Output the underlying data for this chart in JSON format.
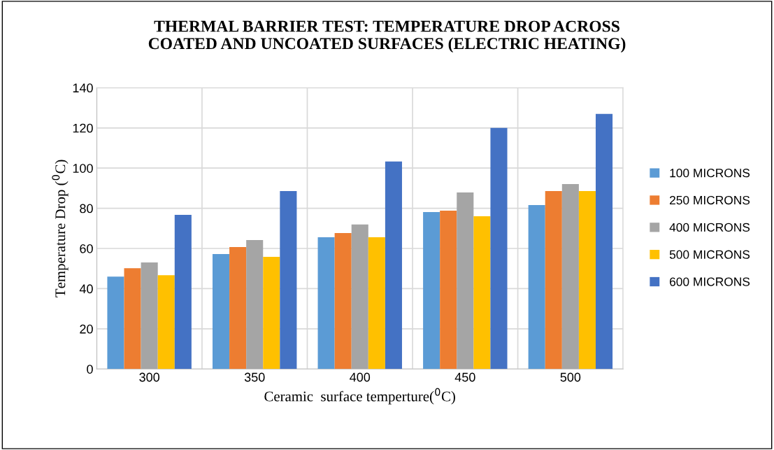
{
  "chart_data": {
    "type": "bar",
    "title": "THERMAL BARRIER TEST: TEMPERATURE DROP ACROSS\nCOATED AND UNCOATED SURFACES (ELECTRIC HEATING)",
    "xlabel": "Ceramic  surface temperture($^{0}$C)",
    "ylabel": "Temperature Drop ($^{0}$C)",
    "categories": [
      "300",
      "350",
      "400",
      "450",
      "500"
    ],
    "series": [
      {
        "name": "100 MICRONS",
        "color": "#5b9bd5",
        "values": [
          46.0,
          57.2,
          65.6,
          78.1,
          81.6
        ]
      },
      {
        "name": "250 MICRONS",
        "color": "#ed7d31",
        "values": [
          50.2,
          60.7,
          67.7,
          78.8,
          88.6
        ]
      },
      {
        "name": "400 MICRONS",
        "color": "#a5a5a5",
        "values": [
          53.0,
          64.2,
          71.9,
          87.9,
          92.1
        ]
      },
      {
        "name": "500 MICRONS",
        "color": "#ffc000",
        "values": [
          46.7,
          55.8,
          65.6,
          76.0,
          88.6
        ]
      },
      {
        "name": "600 MICRONS",
        "color": "#4472c4",
        "values": [
          76.7,
          88.6,
          103.3,
          120.0,
          127.0
        ]
      }
    ],
    "ylim": [
      0,
      140
    ],
    "yticks": [
      0,
      20,
      40,
      60,
      80,
      100,
      120,
      140
    ],
    "grid": true,
    "legend": "right"
  }
}
